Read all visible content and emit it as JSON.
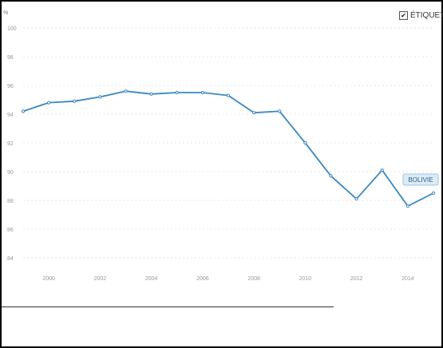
{
  "legend_toggle": {
    "label": "ÉTIQUETT",
    "checked": true,
    "check_glyph": "✔"
  },
  "chart_data": {
    "type": "line",
    "ylabel": "%",
    "ylim": [
      83,
      101
    ],
    "yticks": [
      84,
      86,
      88,
      90,
      92,
      94,
      96,
      98,
      100
    ],
    "xlim": [
      1999,
      2015
    ],
    "xticks": [
      2000,
      2002,
      2004,
      2006,
      2008,
      2010,
      2012,
      2014
    ],
    "grid": true,
    "series": [
      {
        "name": "BOLIVIE",
        "color": "#3a87c0",
        "x": [
          1999,
          2000,
          2001,
          2002,
          2003,
          2004,
          2005,
          2006,
          2007,
          2008,
          2009,
          2010,
          2011,
          2012,
          2013,
          2014,
          2015
        ],
        "values": [
          94.2,
          94.8,
          94.9,
          95.2,
          95.6,
          95.4,
          95.5,
          95.5,
          95.3,
          94.1,
          94.2,
          92.0,
          89.7,
          88.1,
          90.1,
          87.6,
          88.5
        ]
      }
    ]
  }
}
